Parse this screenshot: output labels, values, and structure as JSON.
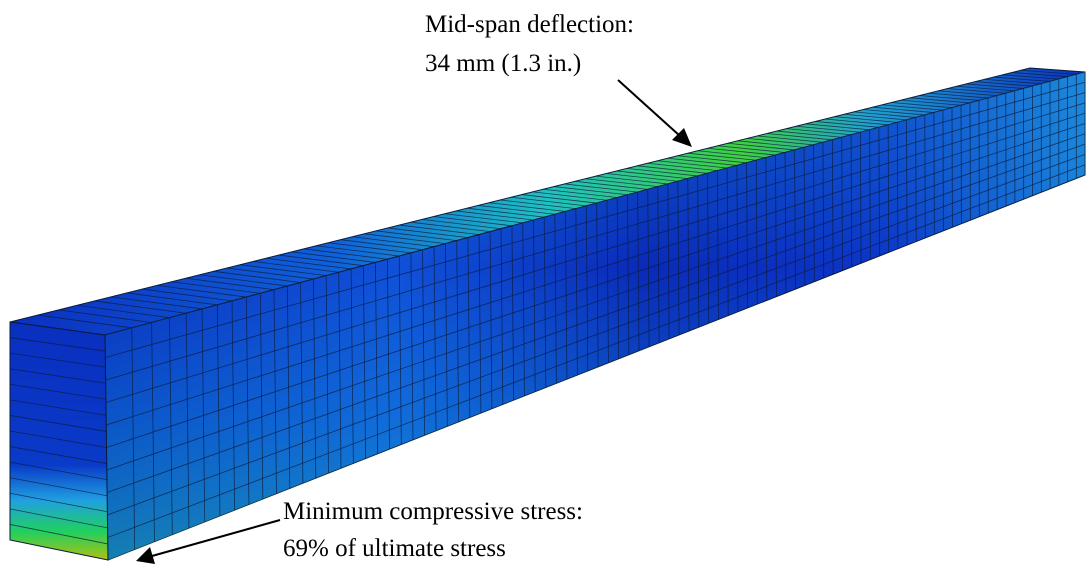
{
  "annotations": [
    {
      "lines": [
        "Mid-span deflection:",
        "34 mm (1.3 in.)"
      ]
    },
    {
      "lines": [
        "Minimum compressive stress:",
        "69% of ultimate stress"
      ]
    }
  ]
}
